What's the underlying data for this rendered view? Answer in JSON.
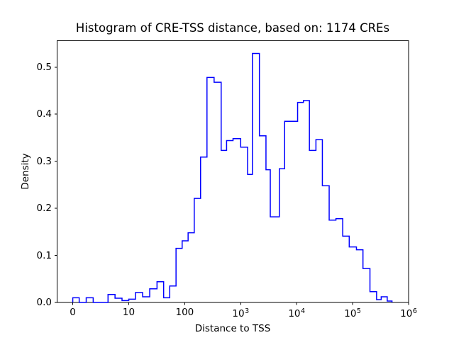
{
  "figure": {
    "title": "Histogram of CRE-TSS distance, based on: 1174 CREs",
    "xlabel": "Distance to TSS",
    "ylabel": "Density"
  },
  "chart_data": {
    "type": "bar",
    "subtype": "step-histogram",
    "title": "Histogram of CRE-TSS distance, based on: 1174 CREs",
    "xlabel": "Distance to TSS",
    "ylabel": "Density",
    "n_samples": 1174,
    "x_scale": "symlog",
    "x_linthresh": 10,
    "xlim": [
      0,
      1000000
    ],
    "ylim": [
      0,
      0.556
    ],
    "grid": false,
    "legend_position": "none",
    "line_color": "#0000ff",
    "axes_color": "#000000",
    "background_color": "#ffffff",
    "x_ticks": [
      {
        "label": "0",
        "base": null,
        "exp": null,
        "value": 0
      },
      {
        "label": "10",
        "base": null,
        "exp": null,
        "value": 10
      },
      {
        "label": "100",
        "base": null,
        "exp": null,
        "value": 100
      },
      {
        "label": null,
        "base": "10",
        "exp": "3",
        "value": 1000
      },
      {
        "label": null,
        "base": "10",
        "exp": "4",
        "value": 10000
      },
      {
        "label": null,
        "base": "10",
        "exp": "5",
        "value": 100000
      },
      {
        "label": null,
        "base": "10",
        "exp": "6",
        "value": 1000000
      }
    ],
    "y_ticks": [
      {
        "label": "0.0",
        "value": 0.0
      },
      {
        "label": "0.1",
        "value": 0.1
      },
      {
        "label": "0.2",
        "value": 0.2
      },
      {
        "label": "0.3",
        "value": 0.3
      },
      {
        "label": "0.4",
        "value": 0.4
      },
      {
        "label": "0.5",
        "value": 0.5
      }
    ],
    "bin_edges": [
      0,
      1.15,
      2.4,
      3.65,
      6.3,
      7.55,
      8.8,
      10,
      13.2,
      17.7,
      23.7,
      32,
      42,
      54,
      70,
      90,
      115,
      148,
      192,
      250,
      335,
      448,
      560,
      730,
      1000,
      1330,
      1620,
      2160,
      2830,
      3380,
      4900,
      6100,
      8000,
      10400,
      13200,
      16900,
      22100,
      28800,
      38100,
      50300,
      66500,
      87000,
      117000,
      153000,
      204000,
      268000,
      324000,
      415000,
      505000
    ],
    "densities": [
      0.01,
      0,
      0.01,
      0,
      0.017,
      0.009,
      0.004,
      0.007,
      0.021,
      0.012,
      0.029,
      0.044,
      0.01,
      0.035,
      0.115,
      0.131,
      0.148,
      0.221,
      0.309,
      0.478,
      0.468,
      0.323,
      0.344,
      0.348,
      0.33,
      0.272,
      0.529,
      0.354,
      0.282,
      0.182,
      0.284,
      0.385,
      0.385,
      0.425,
      0.429,
      0.323,
      0.346,
      0.248,
      0.175,
      0.178,
      0.141,
      0.118,
      0.112,
      0.072,
      0.023,
      0.006,
      0.012,
      0.003
    ]
  }
}
